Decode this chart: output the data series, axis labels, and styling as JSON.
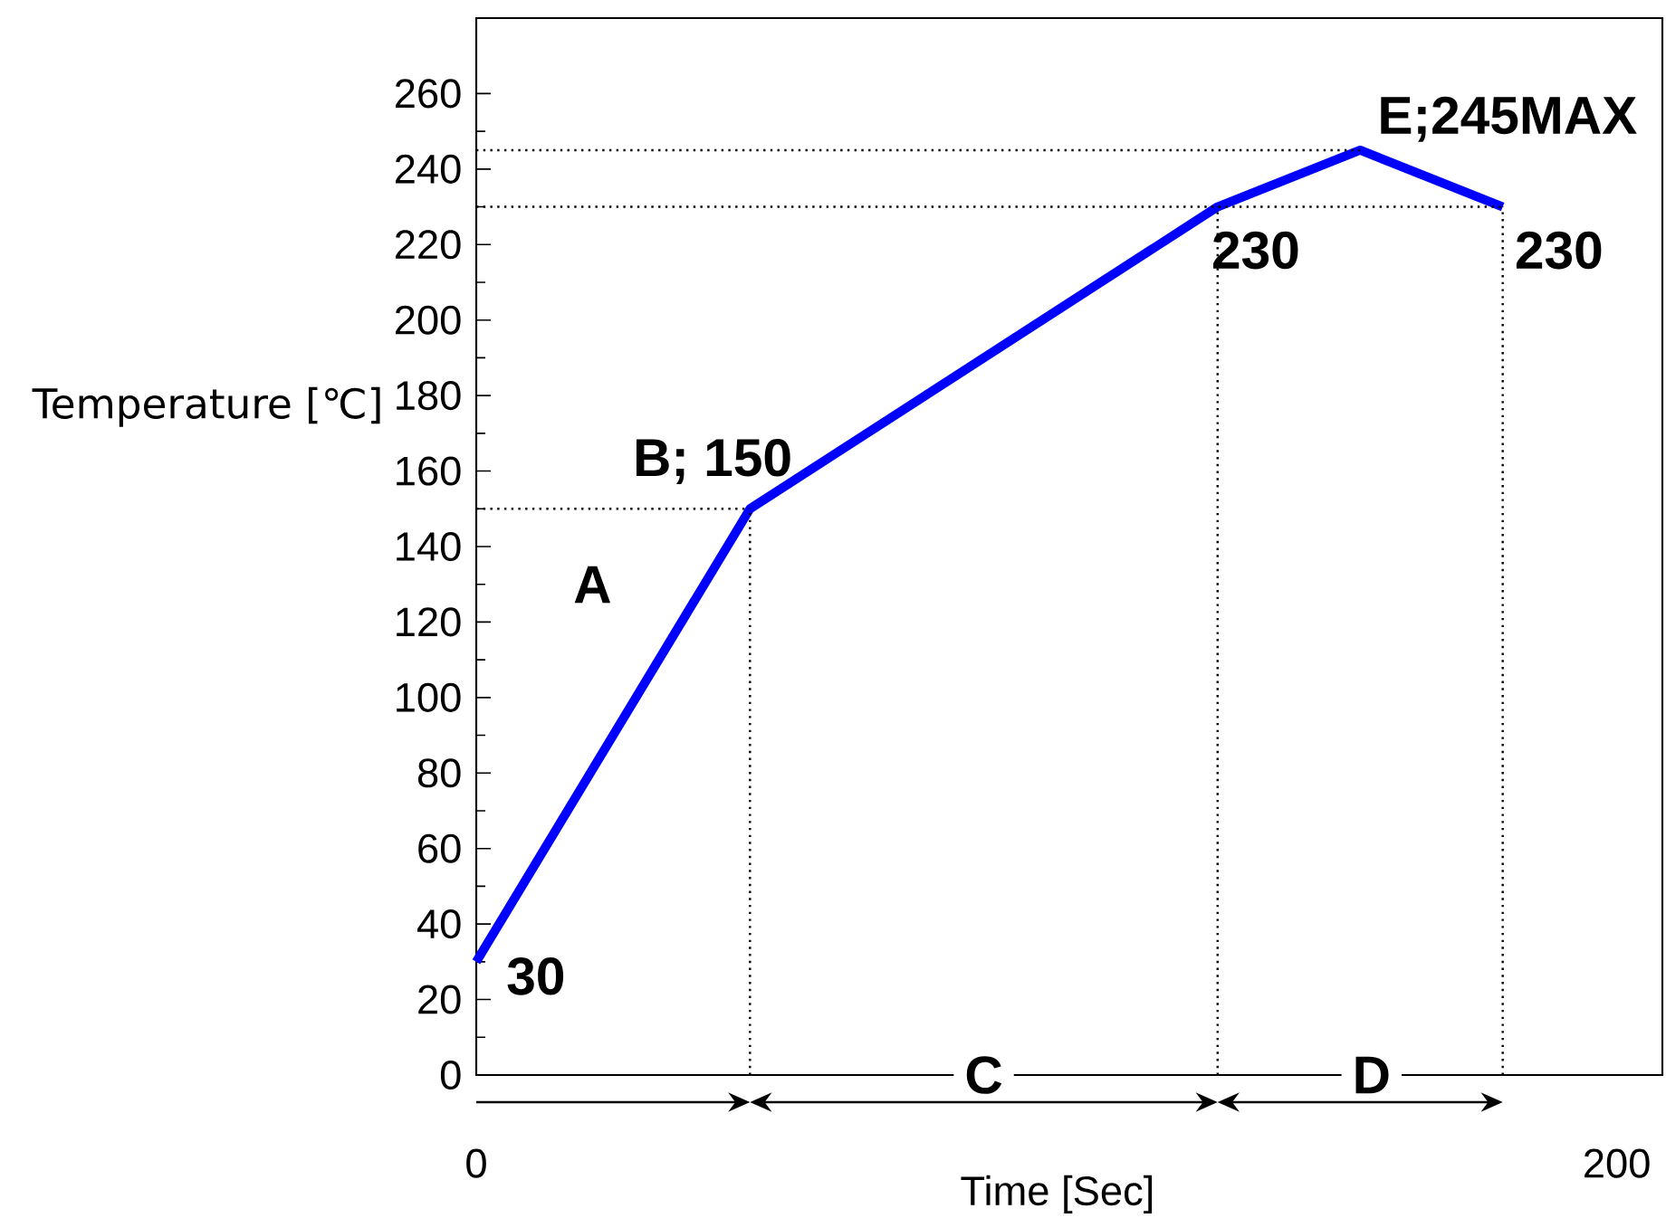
{
  "chart_data": {
    "type": "line",
    "xlabel": "Time [Sec]",
    "ylabel": "Temperature [℃]",
    "xlim": [
      0,
      208
    ],
    "xticks": [
      0,
      200
    ],
    "ylim": [
      0,
      280
    ],
    "yticks": [
      0,
      20,
      40,
      60,
      80,
      100,
      120,
      140,
      160,
      180,
      200,
      220,
      240,
      260
    ],
    "series": [
      {
        "color": "#0000ff",
        "x": [
          0,
          48,
          130,
          155,
          180
        ],
        "values": [
          30,
          150,
          230,
          245,
          230
        ],
        "value_labels": [
          "30",
          "B; 150",
          "230",
          "E;245MAX",
          "230"
        ]
      },
      {
        "color": "#000000",
        "line_style": "dotted",
        "x": [
          0,
          48
        ],
        "values": [
          150,
          150
        ]
      },
      {
        "color": "#000000",
        "line_style": "dotted",
        "x": [
          0,
          180
        ],
        "values": [
          230,
          230
        ]
      },
      {
        "color": "#000000",
        "line_style": "dotted",
        "x": [
          0,
          155
        ],
        "values": [
          245,
          245
        ]
      },
      {
        "color": "#000000",
        "line_style": "dotted",
        "x": [
          48,
          48
        ],
        "values": [
          0,
          150
        ]
      },
      {
        "color": "#000000",
        "line_style": "dotted",
        "x": [
          130,
          130
        ],
        "values": [
          0,
          230
        ]
      },
      {
        "color": "#000000",
        "line_style": "dotted",
        "x": [
          180,
          180
        ],
        "values": [
          0,
          230
        ]
      }
    ],
    "annotations": [
      "A",
      {
        "text": "C",
        "x": 89,
        "y": 0
      },
      {
        "text": "D",
        "x": 157,
        "y": 0
      }
    ]
  }
}
